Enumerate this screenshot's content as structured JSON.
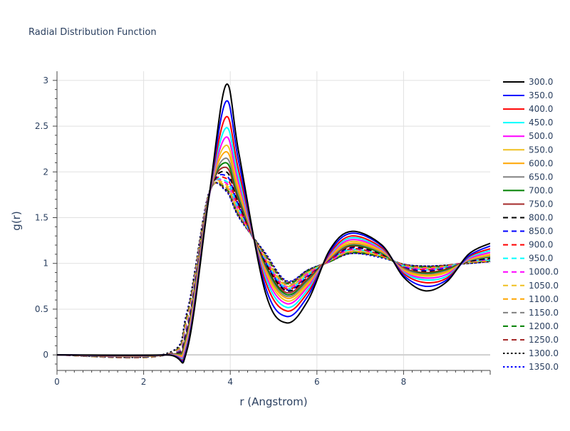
{
  "chart_data": {
    "type": "line",
    "title": "Radial Distribution Function",
    "xlabel": "r (Angstrom)",
    "ylabel": "g(r)",
    "xlim": [
      0,
      10
    ],
    "ylim": [
      -0.17,
      3.1
    ],
    "xticks": [
      0,
      2,
      4,
      6,
      8
    ],
    "xtick_labels": [
      "0",
      "2",
      "4",
      "6",
      "8"
    ],
    "yticks": [
      0,
      0.5,
      1,
      1.5,
      2,
      2.5,
      3
    ],
    "ytick_labels": [
      "0",
      "0.5",
      "1",
      "1.5",
      "2",
      "2.5",
      "3"
    ],
    "grid": true,
    "legend_position": "right",
    "series": [
      {
        "name": "300.0",
        "color": "#000000",
        "dash": "solid",
        "x": [
          0,
          2.5,
          3.0,
          3.5,
          3.9,
          4.2,
          4.8,
          5.3,
          5.8,
          6.3,
          6.8,
          7.5,
          8.0,
          8.5,
          9.0,
          9.5,
          10
        ],
        "y": [
          0,
          0,
          0.05,
          1.7,
          2.95,
          2.2,
          0.7,
          0.35,
          0.6,
          1.15,
          1.35,
          1.2,
          0.85,
          0.7,
          0.8,
          1.1,
          1.22
        ]
      },
      {
        "name": "350.0",
        "color": "#0000ff",
        "dash": "solid",
        "x": [
          0,
          2.5,
          3.0,
          3.5,
          3.9,
          4.2,
          4.8,
          5.3,
          5.8,
          6.3,
          6.8,
          7.5,
          8.0,
          8.5,
          9.0,
          9.5,
          10
        ],
        "y": [
          0,
          0,
          0.07,
          1.7,
          2.77,
          2.1,
          0.76,
          0.42,
          0.65,
          1.13,
          1.33,
          1.19,
          0.87,
          0.75,
          0.82,
          1.08,
          1.19
        ]
      },
      {
        "name": "400.0",
        "color": "#ff0000",
        "dash": "solid",
        "x": [
          0,
          2.5,
          3.0,
          3.5,
          3.9,
          4.2,
          4.8,
          5.3,
          5.8,
          6.3,
          6.8,
          7.5,
          8.0,
          8.5,
          9.0,
          9.5,
          10
        ],
        "y": [
          0,
          0,
          0.09,
          1.7,
          2.6,
          2.0,
          0.82,
          0.48,
          0.69,
          1.11,
          1.3,
          1.17,
          0.89,
          0.79,
          0.84,
          1.07,
          1.16
        ]
      },
      {
        "name": "450.0",
        "color": "#00ffff",
        "dash": "solid",
        "x": [
          0,
          2.5,
          3.0,
          3.5,
          3.9,
          4.2,
          4.8,
          5.3,
          5.8,
          6.3,
          6.8,
          7.5,
          8.0,
          8.5,
          9.0,
          9.5,
          10
        ],
        "y": [
          0,
          0,
          0.11,
          1.7,
          2.48,
          1.93,
          0.86,
          0.52,
          0.72,
          1.1,
          1.28,
          1.16,
          0.9,
          0.82,
          0.86,
          1.06,
          1.14
        ]
      },
      {
        "name": "500.0",
        "color": "#ff00ff",
        "dash": "solid",
        "x": [
          0,
          2.5,
          3.0,
          3.5,
          3.9,
          4.2,
          4.8,
          5.3,
          5.8,
          6.3,
          6.8,
          7.5,
          8.0,
          8.5,
          9.0,
          9.5,
          10
        ],
        "y": [
          0,
          0,
          0.13,
          1.7,
          2.38,
          1.87,
          0.89,
          0.56,
          0.75,
          1.09,
          1.26,
          1.15,
          0.91,
          0.84,
          0.88,
          1.05,
          1.12
        ]
      },
      {
        "name": "550.0",
        "color": "#f0c020",
        "dash": "solid",
        "x": [
          0,
          2.5,
          3.0,
          3.5,
          3.9,
          4.2,
          4.8,
          5.3,
          5.8,
          6.3,
          6.8,
          7.5,
          8.0,
          8.5,
          9.0,
          9.5,
          10
        ],
        "y": [
          0,
          0,
          0.15,
          1.71,
          2.29,
          1.82,
          0.92,
          0.59,
          0.77,
          1.08,
          1.24,
          1.14,
          0.92,
          0.86,
          0.9,
          1.04,
          1.1
        ]
      },
      {
        "name": "600.0",
        "color": "#ffa500",
        "dash": "solid",
        "x": [
          0,
          2.5,
          3.0,
          3.5,
          3.9,
          4.2,
          4.8,
          5.3,
          5.8,
          6.3,
          6.8,
          7.5,
          8.0,
          8.5,
          9.0,
          9.5,
          10
        ],
        "y": [
          0,
          0,
          0.17,
          1.71,
          2.22,
          1.78,
          0.94,
          0.62,
          0.79,
          1.07,
          1.22,
          1.13,
          0.93,
          0.87,
          0.91,
          1.04,
          1.09
        ]
      },
      {
        "name": "650.0",
        "color": "#808080",
        "dash": "solid",
        "x": [
          0,
          2.5,
          3.0,
          3.5,
          3.9,
          4.2,
          4.8,
          5.3,
          5.8,
          6.3,
          6.8,
          7.5,
          8.0,
          8.5,
          9.0,
          9.5,
          10
        ],
        "y": [
          0,
          0,
          0.19,
          1.71,
          2.15,
          1.74,
          0.96,
          0.64,
          0.81,
          1.06,
          1.21,
          1.12,
          0.94,
          0.88,
          0.92,
          1.03,
          1.08
        ]
      },
      {
        "name": "700.0",
        "color": "#008000",
        "dash": "solid",
        "x": [
          0,
          2.5,
          3.0,
          3.5,
          3.9,
          4.2,
          4.8,
          5.3,
          5.8,
          6.3,
          6.8,
          7.5,
          8.0,
          8.5,
          9.0,
          9.5,
          10
        ],
        "y": [
          0,
          0,
          0.21,
          1.72,
          2.1,
          1.71,
          0.98,
          0.66,
          0.82,
          1.06,
          1.2,
          1.11,
          0.94,
          0.89,
          0.93,
          1.03,
          1.07
        ]
      },
      {
        "name": "750.0",
        "color": "#a52a2a",
        "dash": "solid",
        "x": [
          0,
          2.5,
          3.0,
          3.5,
          3.9,
          4.2,
          4.8,
          5.3,
          5.8,
          6.3,
          6.8,
          7.5,
          8.0,
          8.5,
          9.0,
          9.5,
          10
        ],
        "y": [
          0,
          0,
          0.23,
          1.72,
          2.05,
          1.68,
          0.99,
          0.68,
          0.84,
          1.05,
          1.19,
          1.11,
          0.95,
          0.9,
          0.94,
          1.03,
          1.07
        ]
      },
      {
        "name": "800.0",
        "color": "#000000",
        "dash": "dash",
        "x": [
          0,
          2.5,
          3.0,
          3.5,
          3.9,
          4.2,
          4.8,
          5.3,
          5.8,
          6.3,
          6.8,
          7.5,
          8.0,
          8.5,
          9.0,
          9.5,
          10
        ],
        "y": [
          0,
          0,
          0.25,
          1.72,
          2.0,
          1.65,
          1.01,
          0.7,
          0.85,
          1.05,
          1.18,
          1.1,
          0.95,
          0.91,
          0.94,
          1.02,
          1.06
        ]
      },
      {
        "name": "850.0",
        "color": "#0000ff",
        "dash": "dash",
        "x": [
          0,
          2.5,
          3.0,
          3.5,
          3.9,
          4.2,
          4.8,
          5.3,
          5.8,
          6.3,
          6.8,
          7.5,
          8.0,
          8.5,
          9.0,
          9.5,
          10
        ],
        "y": [
          0,
          0,
          0.27,
          1.73,
          1.96,
          1.63,
          1.02,
          0.71,
          0.86,
          1.04,
          1.17,
          1.1,
          0.96,
          0.92,
          0.95,
          1.02,
          1.05
        ]
      },
      {
        "name": "900.0",
        "color": "#ff0000",
        "dash": "dash",
        "x": [
          0,
          2.5,
          3.0,
          3.5,
          3.9,
          4.2,
          4.8,
          5.3,
          5.8,
          6.3,
          6.8,
          7.5,
          8.0,
          8.5,
          9.0,
          9.5,
          10
        ],
        "y": [
          0,
          0,
          0.29,
          1.73,
          1.93,
          1.61,
          1.03,
          0.72,
          0.87,
          1.04,
          1.16,
          1.09,
          0.96,
          0.93,
          0.95,
          1.02,
          1.05
        ]
      },
      {
        "name": "950.0",
        "color": "#00ffff",
        "dash": "dash",
        "x": [
          0,
          2.5,
          3.0,
          3.5,
          3.9,
          4.2,
          4.8,
          5.3,
          5.8,
          6.3,
          6.8,
          7.5,
          8.0,
          8.5,
          9.0,
          9.5,
          10
        ],
        "y": [
          0,
          0,
          0.31,
          1.73,
          1.9,
          1.59,
          1.04,
          0.73,
          0.88,
          1.04,
          1.15,
          1.09,
          0.97,
          0.93,
          0.96,
          1.02,
          1.04
        ]
      },
      {
        "name": "1000.0",
        "color": "#ff00ff",
        "dash": "dash",
        "x": [
          0,
          2.5,
          3.0,
          3.5,
          3.9,
          4.2,
          4.8,
          5.3,
          5.8,
          6.3,
          6.8,
          7.5,
          8.0,
          8.5,
          9.0,
          9.5,
          10
        ],
        "y": [
          0,
          0,
          0.33,
          1.74,
          1.88,
          1.57,
          1.05,
          0.74,
          0.89,
          1.03,
          1.15,
          1.09,
          0.97,
          0.94,
          0.96,
          1.02,
          1.04
        ]
      },
      {
        "name": "1050.0",
        "color": "#f0c020",
        "dash": "dash",
        "x": [
          0,
          2.5,
          3.0,
          3.5,
          3.9,
          4.2,
          4.8,
          5.3,
          5.8,
          6.3,
          6.8,
          7.5,
          8.0,
          8.5,
          9.0,
          9.5,
          10
        ],
        "y": [
          0,
          0,
          0.35,
          1.74,
          1.86,
          1.56,
          1.06,
          0.75,
          0.9,
          1.03,
          1.14,
          1.08,
          0.97,
          0.94,
          0.96,
          1.01,
          1.04
        ]
      },
      {
        "name": "1100.0",
        "color": "#ffa500",
        "dash": "dash",
        "x": [
          0,
          2.5,
          3.0,
          3.5,
          3.9,
          4.2,
          4.8,
          5.3,
          5.8,
          6.3,
          6.8,
          7.5,
          8.0,
          8.5,
          9.0,
          9.5,
          10
        ],
        "y": [
          0,
          0,
          0.37,
          1.74,
          1.84,
          1.55,
          1.07,
          0.76,
          0.9,
          1.03,
          1.13,
          1.08,
          0.98,
          0.95,
          0.97,
          1.01,
          1.03
        ]
      },
      {
        "name": "1150.0",
        "color": "#808080",
        "dash": "dash",
        "x": [
          0,
          2.5,
          3.0,
          3.5,
          3.9,
          4.2,
          4.8,
          5.3,
          5.8,
          6.3,
          6.8,
          7.5,
          8.0,
          8.5,
          9.0,
          9.5,
          10
        ],
        "y": [
          0,
          0,
          0.39,
          1.75,
          1.83,
          1.54,
          1.08,
          0.77,
          0.91,
          1.03,
          1.13,
          1.08,
          0.98,
          0.95,
          0.97,
          1.01,
          1.03
        ]
      },
      {
        "name": "1200.0",
        "color": "#008000",
        "dash": "dash",
        "x": [
          0,
          2.5,
          3.0,
          3.5,
          3.9,
          4.2,
          4.8,
          5.3,
          5.8,
          6.3,
          6.8,
          7.5,
          8.0,
          8.5,
          9.0,
          9.5,
          10
        ],
        "y": [
          0,
          0,
          0.41,
          1.75,
          1.82,
          1.53,
          1.09,
          0.78,
          0.92,
          1.02,
          1.12,
          1.07,
          0.98,
          0.96,
          0.97,
          1.01,
          1.03
        ]
      },
      {
        "name": "1250.0",
        "color": "#a52a2a",
        "dash": "dash",
        "x": [
          0,
          2.5,
          3.0,
          3.5,
          3.9,
          4.2,
          4.8,
          5.3,
          5.8,
          6.3,
          6.8,
          7.5,
          8.0,
          8.5,
          9.0,
          9.5,
          10
        ],
        "y": [
          0,
          0,
          0.43,
          1.75,
          1.81,
          1.52,
          1.1,
          0.79,
          0.92,
          1.02,
          1.12,
          1.07,
          0.99,
          0.96,
          0.98,
          1.01,
          1.02
        ]
      },
      {
        "name": "1300.0",
        "color": "#000000",
        "dash": "dot",
        "x": [
          0,
          2.5,
          3.0,
          3.5,
          3.9,
          4.2,
          4.8,
          5.3,
          5.8,
          6.3,
          6.8,
          7.5,
          8.0,
          8.5,
          9.0,
          9.5,
          10
        ],
        "y": [
          0,
          0.01,
          0.45,
          1.76,
          1.8,
          1.51,
          1.11,
          0.8,
          0.93,
          1.02,
          1.11,
          1.07,
          0.99,
          0.97,
          0.98,
          1.0,
          1.02
        ]
      },
      {
        "name": "1350.0",
        "color": "#0000ff",
        "dash": "dot",
        "x": [
          0,
          2.5,
          3.0,
          3.5,
          3.9,
          4.2,
          4.8,
          5.3,
          5.8,
          6.3,
          6.8,
          7.5,
          8.0,
          8.5,
          9.0,
          9.5,
          10
        ],
        "y": [
          0,
          0.01,
          0.47,
          1.76,
          1.79,
          1.5,
          1.12,
          0.81,
          0.93,
          1.02,
          1.11,
          1.06,
          0.99,
          0.97,
          0.98,
          1.0,
          1.02
        ]
      }
    ]
  }
}
